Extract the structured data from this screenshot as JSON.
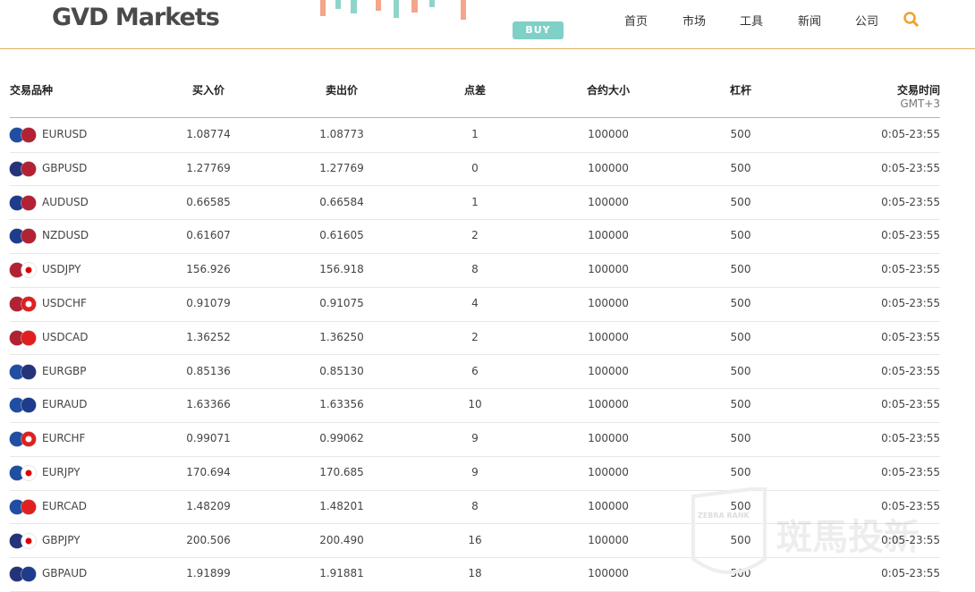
{
  "header": {
    "logo": "GVD Markets",
    "banner": "BUY",
    "nav": [
      "首页",
      "市场",
      "工具",
      "新闻",
      "公司"
    ]
  },
  "table": {
    "columns": [
      "交易品种",
      "买入价",
      "卖出价",
      "点差",
      "合约大小",
      "杠杆",
      "交易时间"
    ],
    "time_note": "GMT+3",
    "rows": [
      [
        "EURUSD",
        "1.08774",
        "1.08773",
        "1",
        "100000",
        "500",
        "0:05-23:55"
      ],
      [
        "GBPUSD",
        "1.27769",
        "1.27769",
        "0",
        "100000",
        "500",
        "0:05-23:55"
      ],
      [
        "AUDUSD",
        "0.66585",
        "0.66584",
        "1",
        "100000",
        "500",
        "0:05-23:55"
      ],
      [
        "NZDUSD",
        "0.61607",
        "0.61605",
        "2",
        "100000",
        "500",
        "0:05-23:55"
      ],
      [
        "USDJPY",
        "156.926",
        "156.918",
        "8",
        "100000",
        "500",
        "0:05-23:55"
      ],
      [
        "USDCHF",
        "0.91079",
        "0.91075",
        "4",
        "100000",
        "500",
        "0:05-23:55"
      ],
      [
        "USDCAD",
        "1.36252",
        "1.36250",
        "2",
        "100000",
        "500",
        "0:05-23:55"
      ],
      [
        "EURGBP",
        "0.85136",
        "0.85130",
        "6",
        "100000",
        "500",
        "0:05-23:55"
      ],
      [
        "EURAUD",
        "1.63366",
        "1.63356",
        "10",
        "100000",
        "500",
        "0:05-23:55"
      ],
      [
        "EURCHF",
        "0.99071",
        "0.99062",
        "9",
        "100000",
        "500",
        "0:05-23:55"
      ],
      [
        "EURJPY",
        "170.694",
        "170.685",
        "9",
        "100000",
        "500",
        "0:05-23:55"
      ],
      [
        "EURCAD",
        "1.48209",
        "1.48201",
        "8",
        "100000",
        "500",
        "0:05-23:55"
      ],
      [
        "GBPJPY",
        "200.506",
        "200.490",
        "16",
        "100000",
        "500",
        "0:05-23:55"
      ],
      [
        "GBPAUD",
        "1.91899",
        "1.91881",
        "18",
        "100000",
        "500",
        "0:05-23:55"
      ]
    ]
  },
  "watermark": {
    "brand": "ZEBRA RANK",
    "text": "斑馬投新"
  }
}
